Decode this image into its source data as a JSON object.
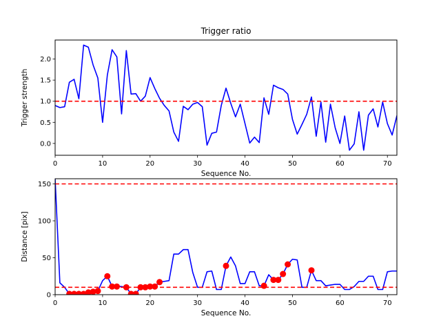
{
  "chart_data": [
    {
      "type": "line",
      "title": "Trigger ratio",
      "xlabel": "Sequence No.",
      "ylabel": "Trigger strength",
      "xlim": [
        0,
        72
      ],
      "ylim": [
        -0.28,
        2.45
      ],
      "xticks": [
        "0",
        "10",
        "20",
        "30",
        "40",
        "50",
        "60",
        "70"
      ],
      "xtick_values": [
        0,
        10,
        20,
        30,
        40,
        50,
        60,
        70
      ],
      "yticks": [
        "0.0",
        "0.5",
        "1.0",
        "1.5",
        "2.0"
      ],
      "ytick_values": [
        0,
        0.5,
        1.0,
        1.5,
        2.0
      ],
      "grid": false,
      "series": [
        {
          "color": "#0000ff",
          "style": "solid",
          "x": [
            0,
            1,
            2,
            3,
            4,
            5,
            6,
            7,
            8,
            9,
            10,
            11,
            12,
            13,
            14,
            15,
            16,
            17,
            18,
            19,
            20,
            21,
            22,
            23,
            24,
            25,
            26,
            27,
            28,
            29,
            30,
            31,
            32,
            33,
            34,
            35,
            36,
            37,
            38,
            39,
            40,
            41,
            42,
            43,
            44,
            45,
            46,
            47,
            48,
            49,
            50,
            51,
            52,
            53,
            54,
            55,
            56,
            57,
            58,
            59,
            60,
            61,
            62,
            63,
            64,
            65,
            66,
            67,
            68,
            69,
            70,
            71,
            72
          ],
          "values": [
            0.9,
            0.85,
            0.87,
            1.45,
            1.52,
            1.06,
            2.33,
            2.28,
            1.86,
            1.55,
            0.5,
            1.62,
            2.22,
            2.05,
            0.7,
            2.2,
            1.17,
            1.18,
            1.0,
            1.12,
            1.56,
            1.3,
            1.07,
            0.9,
            0.77,
            0.27,
            0.05,
            0.88,
            0.8,
            0.93,
            0.97,
            0.87,
            -0.04,
            0.24,
            0.27,
            0.9,
            1.31,
            0.95,
            0.63,
            0.93,
            0.47,
            0.01,
            0.15,
            0.02,
            1.08,
            0.69,
            1.38,
            1.32,
            1.28,
            1.17,
            0.57,
            0.22,
            0.45,
            0.69,
            1.1,
            0.17,
            0.98,
            0.03,
            0.93,
            0.37,
            0.0,
            0.65,
            -0.16,
            -0.01,
            0.75,
            -0.16,
            0.67,
            0.82,
            0.39,
            0.98,
            0.47,
            0.2,
            0.66
          ]
        },
        {
          "color": "#ff0000",
          "style": "dashed",
          "x": [
            0,
            72
          ],
          "values": [
            1.0,
            1.0
          ]
        }
      ]
    },
    {
      "type": "line",
      "title": "",
      "xlabel": "Sequence No.",
      "ylabel": "Distance [pix]",
      "xlim": [
        0,
        72
      ],
      "ylim": [
        0,
        157
      ],
      "xticks": [
        "0",
        "10",
        "20",
        "30",
        "40",
        "50",
        "60",
        "70"
      ],
      "xtick_values": [
        0,
        10,
        20,
        30,
        40,
        50,
        60,
        70
      ],
      "yticks": [
        "0",
        "50",
        "100",
        "150"
      ],
      "ytick_values": [
        0,
        50,
        100,
        150
      ],
      "grid": false,
      "series": [
        {
          "color": "#0000ff",
          "style": "solid",
          "x": [
            0,
            1,
            2,
            3,
            4,
            5,
            6,
            7,
            8,
            9,
            10,
            11,
            12,
            13,
            14,
            15,
            16,
            17,
            18,
            19,
            20,
            21,
            22,
            23,
            24,
            25,
            26,
            27,
            28,
            29,
            30,
            31,
            32,
            33,
            34,
            35,
            36,
            37,
            38,
            39,
            40,
            41,
            42,
            43,
            44,
            45,
            46,
            47,
            48,
            49,
            50,
            51,
            52,
            53,
            54,
            55,
            56,
            57,
            58,
            59,
            60,
            61,
            62,
            63,
            64,
            65,
            66,
            67,
            68,
            69,
            70,
            71,
            72
          ],
          "values": [
            157,
            16,
            10,
            1,
            1,
            1,
            1,
            3,
            4,
            5,
            19,
            25,
            11,
            11,
            11,
            10,
            1,
            1,
            10,
            10,
            11,
            11,
            17,
            18,
            19,
            55,
            55,
            61,
            61,
            30,
            10,
            10,
            31,
            32,
            7,
            7,
            39,
            51,
            39,
            15,
            15,
            31,
            31,
            12,
            12,
            27,
            20,
            20,
            28,
            41,
            48,
            47,
            10,
            10,
            33,
            19,
            19,
            12,
            13,
            14,
            14,
            7,
            7,
            11,
            18,
            18,
            25,
            25,
            7,
            7,
            31,
            32,
            32
          ]
        },
        {
          "color": "#ff0000",
          "style": "dashed",
          "x": [
            0,
            72
          ],
          "values": [
            150,
            150
          ]
        },
        {
          "color": "#ff0000",
          "style": "dashed",
          "x": [
            0,
            72
          ],
          "values": [
            10,
            10
          ]
        },
        {
          "color": "#ff0000",
          "style": "markers",
          "x": [
            3,
            4,
            5,
            6,
            7,
            8,
            9,
            11,
            12,
            13,
            15,
            16,
            17,
            18,
            19,
            20,
            21,
            22,
            36,
            44,
            46,
            47,
            48,
            49,
            54
          ],
          "values": [
            1,
            1,
            1,
            1,
            3,
            4,
            5,
            25,
            11,
            11,
            10,
            1,
            1,
            10,
            10,
            11,
            11,
            17,
            39,
            12,
            20,
            20,
            28,
            41,
            33
          ]
        }
      ]
    }
  ]
}
